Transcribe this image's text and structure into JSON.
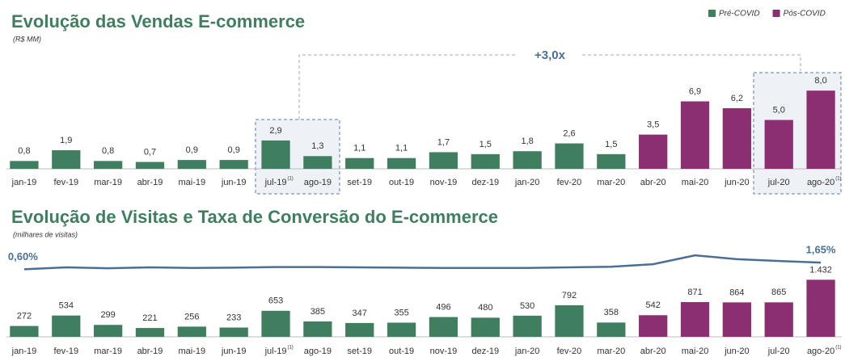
{
  "chart_data": [
    {
      "type": "bar",
      "title": "Evolução das Vendas E-commerce",
      "subtitle": "(R$ MM)",
      "annotation": "+3,0x",
      "legend": "top-right",
      "categories": [
        "jan-19",
        "fev-19",
        "mar-19",
        "abr-19",
        "mai-19",
        "jun-19",
        "jul-19",
        "ago-19",
        "set-19",
        "out-19",
        "nov-19",
        "dez-19",
        "jan-20",
        "fev-20",
        "mar-20",
        "abr-20",
        "mai-20",
        "jun-20",
        "jul-20",
        "ago-20"
      ],
      "category_notes": [
        null,
        null,
        null,
        null,
        null,
        null,
        "(1)",
        null,
        null,
        null,
        null,
        null,
        null,
        null,
        null,
        null,
        null,
        null,
        null,
        "(1)"
      ],
      "ylim": [
        0,
        10
      ],
      "series": [
        {
          "name": "Pré-COVID",
          "color": "#3f7f60",
          "values": [
            0.8,
            1.9,
            0.8,
            0.7,
            0.9,
            0.9,
            2.9,
            1.3,
            1.1,
            1.1,
            1.7,
            1.5,
            1.8,
            2.6,
            1.5,
            null,
            null,
            null,
            null,
            null
          ],
          "value_labels": [
            "0,8",
            "1,9",
            "0,8",
            "0,7",
            "0,9",
            "0,9",
            "2,9",
            "1,3",
            "1,1",
            "1,1",
            "1,7",
            "1,5",
            "1,8",
            "2,6",
            "1,5",
            null,
            null,
            null,
            null,
            null
          ]
        },
        {
          "name": "Pós-COVID",
          "color": "#8c2f72",
          "values": [
            null,
            null,
            null,
            null,
            null,
            null,
            null,
            null,
            null,
            null,
            null,
            null,
            null,
            null,
            null,
            3.5,
            6.9,
            6.2,
            5.0,
            8.0
          ],
          "value_labels": [
            null,
            null,
            null,
            null,
            null,
            null,
            null,
            null,
            null,
            null,
            null,
            null,
            null,
            null,
            null,
            "3,5",
            "6,9",
            "6,2",
            "5,0",
            "8,0"
          ]
        }
      ]
    },
    {
      "type": "bar",
      "title": "Evolução de Visitas e Taxa de Conversão do E-commerce",
      "subtitle": "(milhares de visitas)",
      "categories": [
        "jan-19",
        "fev-19",
        "mar-19",
        "abr-19",
        "mai-19",
        "jun-19",
        "jul-19",
        "ago-19",
        "set-19",
        "out-19",
        "nov-19",
        "dez-19",
        "jan-20",
        "fev-20",
        "mar-20",
        "abr-20",
        "mai-20",
        "jun-20",
        "jul-20",
        "ago-20"
      ],
      "category_notes": [
        null,
        null,
        null,
        null,
        null,
        null,
        "(1)",
        null,
        null,
        null,
        null,
        null,
        null,
        null,
        null,
        null,
        null,
        null,
        null,
        "(1)"
      ],
      "ylim": [
        0,
        1500
      ],
      "y2lim": [
        0,
        10
      ],
      "series": [
        {
          "color": "#3f7f60",
          "values": [
            272,
            534,
            299,
            221,
            256,
            233,
            653,
            385,
            347,
            355,
            496,
            480,
            530,
            792,
            358,
            null,
            null,
            null,
            null,
            null
          ]
        },
        {
          "color": "#8c2f72",
          "values": [
            null,
            null,
            null,
            null,
            null,
            null,
            null,
            null,
            null,
            null,
            null,
            null,
            null,
            null,
            null,
            542,
            871,
            864,
            865,
            1432
          ],
          "value_labels": [
            null,
            null,
            null,
            null,
            null,
            null,
            null,
            null,
            null,
            null,
            null,
            null,
            null,
            null,
            null,
            "542",
            "871",
            "864",
            "865",
            "1.432"
          ]
        },
        {
          "type": "line",
          "axis": "y2",
          "color": "#4a6f96",
          "values": [
            0.6,
            0.9,
            0.75,
            0.9,
            0.8,
            0.85,
            0.95,
            0.95,
            0.9,
            0.85,
            0.8,
            0.8,
            0.8,
            0.9,
            1.0,
            1.4,
            2.8,
            2.2,
            1.9,
            1.65
          ],
          "value_labels": [
            "0,60%",
            null,
            null,
            null,
            null,
            null,
            null,
            null,
            null,
            null,
            null,
            null,
            null,
            null,
            null,
            null,
            null,
            null,
            null,
            "1,65%"
          ]
        }
      ]
    }
  ]
}
